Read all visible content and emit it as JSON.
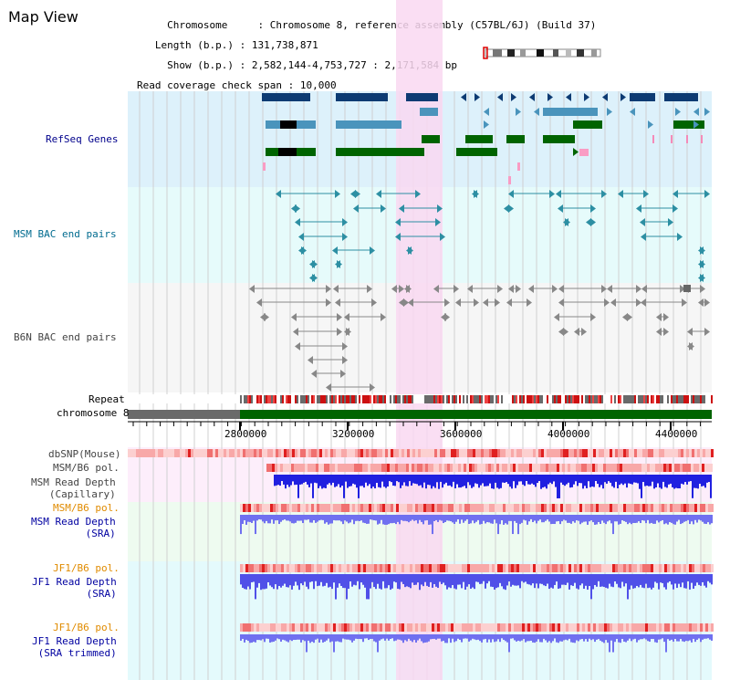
{
  "title": "Map View",
  "info": {
    "chromosome_key": "Chromosome",
    "chromosome_val": "Chromosome 8, reference assembly (C57BL/6J) (Build 37)",
    "length_key": "Length (b.p.)",
    "length_val": "131,738,871",
    "show_key": "Show (b.p.)",
    "show_val": "2,582,144-4,753,727 : 2,171,584 bp",
    "span_key": "Read coverage check span",
    "span_val": "10,000"
  },
  "tracks": {
    "refseq": "RefSeq Genes",
    "msm_bac": "MSM BAC end pairs",
    "b6n_bac": "B6N BAC end pairs",
    "repeat": "Repeat",
    "chromosome": "chromosome 8",
    "dbsnp": "dbSNP(Mouse)",
    "msm_b6_pol_1": "MSM/B6 pol.",
    "msm_depth_cap": "MSM Read Depth\n(Capillary)",
    "msm_b6_pol_2": "MSM/B6 pol.",
    "msm_depth_sra": "MSM Read Depth\n(SRA)",
    "jf1_b6_pol_1": "JF1/B6 pol.",
    "jf1_depth_sra": "JF1 Read Depth\n(SRA)",
    "jf1_b6_pol_2": "JF1/B6 pol.",
    "jf1_depth_trim": "JF1 Read Depth\n(SRA trimmed)"
  },
  "ruler": {
    "ticks": [
      "2800000",
      "3200000",
      "3600000",
      "4000000",
      "4400000"
    ]
  },
  "colors": {
    "refseq_bg": "#ddf1fb",
    "msm_bg": "#e6fbfb",
    "b6n_bg": "#f6f6f6",
    "highlight": "#f9d8f1",
    "gene_dark": "#0d3b73",
    "gene_mid": "#4a94bc",
    "gene_green": "#006400",
    "bac_teal": "#2d8fa3",
    "snp_red": "#e03030",
    "depth_blue": "#3030e0",
    "chrom_green": "#006400",
    "chrom_gray": "#6a6a6a"
  }
}
